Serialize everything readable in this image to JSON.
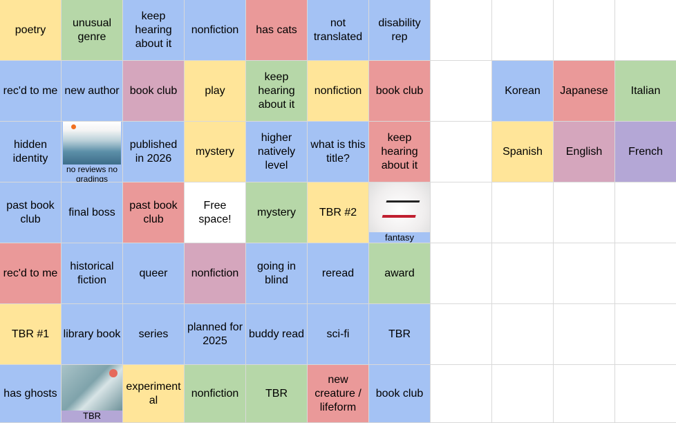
{
  "colors": {
    "Y": "#ffe599",
    "G": "#b6d7a8",
    "B": "#a4c2f4",
    "R": "#ea9999",
    "P": "#d5a6bd",
    "V": "#b4a7d6",
    "W": "#ffffff",
    "": "#ffffff"
  },
  "rows": [
    [
      {
        "t": "poetry",
        "c": "Y"
      },
      {
        "t": "unusual genre",
        "c": "G"
      },
      {
        "t": "keep hearing about it",
        "c": "B"
      },
      {
        "t": "nonfiction",
        "c": "B"
      },
      {
        "t": "has cats",
        "c": "R"
      },
      {
        "t": "not translated",
        "c": "B"
      },
      {
        "t": "disability rep",
        "c": "B"
      },
      {
        "t": "",
        "c": ""
      },
      {
        "t": "",
        "c": ""
      },
      {
        "t": "",
        "c": ""
      },
      {
        "t": "",
        "c": ""
      }
    ],
    [
      {
        "t": "rec'd to me",
        "c": "B"
      },
      {
        "t": "new author",
        "c": "B"
      },
      {
        "t": "book club",
        "c": "P"
      },
      {
        "t": "play",
        "c": "Y"
      },
      {
        "t": "keep hearing about it",
        "c": "G"
      },
      {
        "t": "nonfiction",
        "c": "Y"
      },
      {
        "t": "book club",
        "c": "R"
      },
      {
        "t": "",
        "c": ""
      },
      {
        "t": "Korean",
        "c": "B"
      },
      {
        "t": "Japanese",
        "c": "R"
      },
      {
        "t": "Italian",
        "c": "G"
      }
    ],
    [
      {
        "t": "hidden identity",
        "c": "B"
      },
      {
        "t": "no reviews no gradings",
        "c": "B",
        "img": "sea"
      },
      {
        "t": "published in 2026",
        "c": "B"
      },
      {
        "t": "mystery",
        "c": "Y"
      },
      {
        "t": "higher natively level",
        "c": "B"
      },
      {
        "t": "what is this title?",
        "c": "B"
      },
      {
        "t": "keep hearing about it",
        "c": "R"
      },
      {
        "t": "",
        "c": ""
      },
      {
        "t": "Spanish",
        "c": "Y"
      },
      {
        "t": "English",
        "c": "P"
      },
      {
        "t": "French",
        "c": "V"
      }
    ],
    [
      {
        "t": "past book club",
        "c": "B"
      },
      {
        "t": "final boss",
        "c": "B"
      },
      {
        "t": "past book club",
        "c": "R"
      },
      {
        "t": "Free space!",
        "c": "W"
      },
      {
        "t": "mystery",
        "c": "G"
      },
      {
        "t": "TBR #2",
        "c": "Y"
      },
      {
        "t": "fantasy",
        "c": "B",
        "img": "novel"
      },
      {
        "t": "",
        "c": ""
      },
      {
        "t": "",
        "c": ""
      },
      {
        "t": "",
        "c": ""
      },
      {
        "t": "",
        "c": ""
      }
    ],
    [
      {
        "t": "rec'd to me",
        "c": "R"
      },
      {
        "t": "historical fiction",
        "c": "B"
      },
      {
        "t": "queer",
        "c": "B"
      },
      {
        "t": "nonfiction",
        "c": "P"
      },
      {
        "t": "going in blind",
        "c": "B"
      },
      {
        "t": "reread",
        "c": "B"
      },
      {
        "t": "award",
        "c": "G"
      },
      {
        "t": "",
        "c": ""
      },
      {
        "t": "",
        "c": ""
      },
      {
        "t": "",
        "c": ""
      },
      {
        "t": "",
        "c": ""
      }
    ],
    [
      {
        "t": "TBR #1",
        "c": "Y"
      },
      {
        "t": "library book",
        "c": "B"
      },
      {
        "t": "series",
        "c": "B"
      },
      {
        "t": "planned for 2025",
        "c": "B"
      },
      {
        "t": "buddy read",
        "c": "B"
      },
      {
        "t": "sci-fi",
        "c": "B"
      },
      {
        "t": "TBR",
        "c": "B"
      },
      {
        "t": "",
        "c": ""
      },
      {
        "t": "",
        "c": ""
      },
      {
        "t": "",
        "c": ""
      },
      {
        "t": "",
        "c": ""
      }
    ],
    [
      {
        "t": "has ghosts",
        "c": "B"
      },
      {
        "t": "TBR",
        "c": "V",
        "img": "truck"
      },
      {
        "t": "experimental",
        "c": "Y"
      },
      {
        "t": "nonfiction",
        "c": "G"
      },
      {
        "t": "TBR",
        "c": "G"
      },
      {
        "t": "new creature / lifeform",
        "c": "R"
      },
      {
        "t": "book club",
        "c": "B"
      },
      {
        "t": "",
        "c": ""
      },
      {
        "t": "",
        "c": ""
      },
      {
        "t": "",
        "c": ""
      },
      {
        "t": "",
        "c": ""
      }
    ]
  ]
}
